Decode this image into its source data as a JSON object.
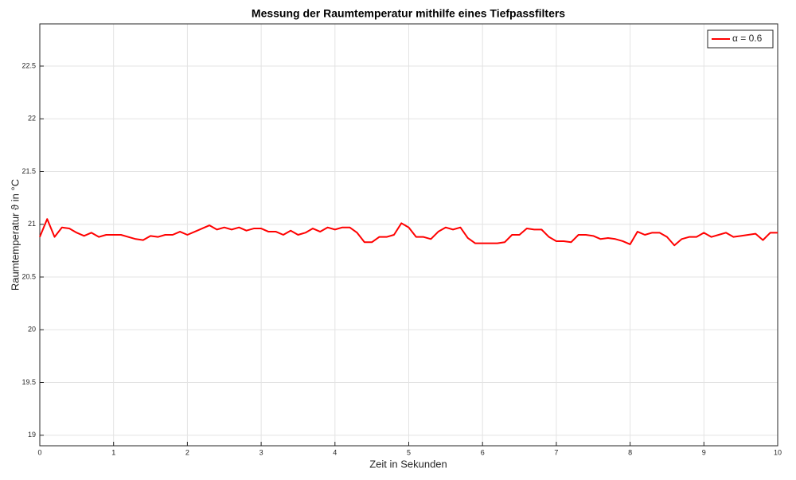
{
  "chart_data": {
    "type": "line",
    "title": "Messung der Raumtemperatur mithilfe eines Tiefpassfilters",
    "xlabel": "Zeit in Sekunden",
    "ylabel": "Raumtemperatur ϑ in °C",
    "x": [
      0,
      0.1,
      0.2,
      0.3,
      0.4,
      0.5,
      0.6,
      0.7,
      0.8,
      0.9,
      1,
      1.1,
      1.2,
      1.3,
      1.4,
      1.5,
      1.6,
      1.7,
      1.8,
      1.9,
      2,
      2.1,
      2.2,
      2.3,
      2.4,
      2.5,
      2.6,
      2.7,
      2.8,
      2.9,
      3,
      3.1,
      3.2,
      3.3,
      3.4,
      3.5,
      3.6,
      3.7,
      3.8,
      3.9,
      4,
      4.1,
      4.2,
      4.3,
      4.4,
      4.5,
      4.6,
      4.7,
      4.8,
      4.9,
      5,
      5.1,
      5.2,
      5.3,
      5.4,
      5.5,
      5.6,
      5.7,
      5.8,
      5.9,
      6,
      6.1,
      6.2,
      6.3,
      6.4,
      6.5,
      6.6,
      6.7,
      6.8,
      6.9,
      7,
      7.1,
      7.2,
      7.3,
      7.4,
      7.5,
      7.6,
      7.7,
      7.8,
      7.9,
      8,
      8.1,
      8.2,
      8.3,
      8.4,
      8.5,
      8.6,
      8.7,
      8.8,
      8.9,
      9,
      9.1,
      9.2,
      9.3,
      9.4,
      9.5,
      9.6,
      9.7,
      9.8,
      9.9,
      10
    ],
    "series": [
      {
        "name": "α = 0.6",
        "color": "#ff0000",
        "values": [
          20.88,
          21.05,
          20.88,
          20.97,
          20.96,
          20.92,
          20.89,
          20.92,
          20.88,
          20.9,
          20.9,
          20.9,
          20.88,
          20.86,
          20.85,
          20.89,
          20.88,
          20.9,
          20.9,
          20.93,
          20.9,
          20.93,
          20.96,
          20.99,
          20.95,
          20.97,
          20.95,
          20.97,
          20.94,
          20.96,
          20.96,
          20.93,
          20.93,
          20.9,
          20.94,
          20.9,
          20.92,
          20.96,
          20.93,
          20.97,
          20.95,
          20.97,
          20.97,
          20.92,
          20.83,
          20.83,
          20.88,
          20.88,
          20.9,
          21.01,
          20.97,
          20.88,
          20.88,
          20.86,
          20.93,
          20.97,
          20.95,
          20.97,
          20.87,
          20.82,
          20.82,
          20.82,
          20.82,
          20.83,
          20.9,
          20.9,
          20.96,
          20.95,
          20.95,
          20.88,
          20.84,
          20.84,
          20.83,
          20.9,
          20.9,
          20.89,
          20.86,
          20.87,
          20.86,
          20.84,
          20.81,
          20.93,
          20.9,
          20.92,
          20.92,
          20.88,
          20.8,
          20.86,
          20.88,
          20.88,
          20.92,
          20.88,
          20.9,
          20.92,
          20.88,
          20.89,
          20.9,
          20.91,
          20.85,
          20.92,
          20.92
        ]
      }
    ],
    "xlim": [
      0,
      10
    ],
    "xticks": [
      0,
      1,
      2,
      3,
      4,
      5,
      6,
      7,
      8,
      9,
      10
    ],
    "ylim": [
      18.9,
      22.9
    ],
    "yticks": [
      19,
      19.5,
      20,
      20.5,
      21,
      21.5,
      22,
      22.5
    ],
    "grid": true,
    "legend": "upper right"
  }
}
